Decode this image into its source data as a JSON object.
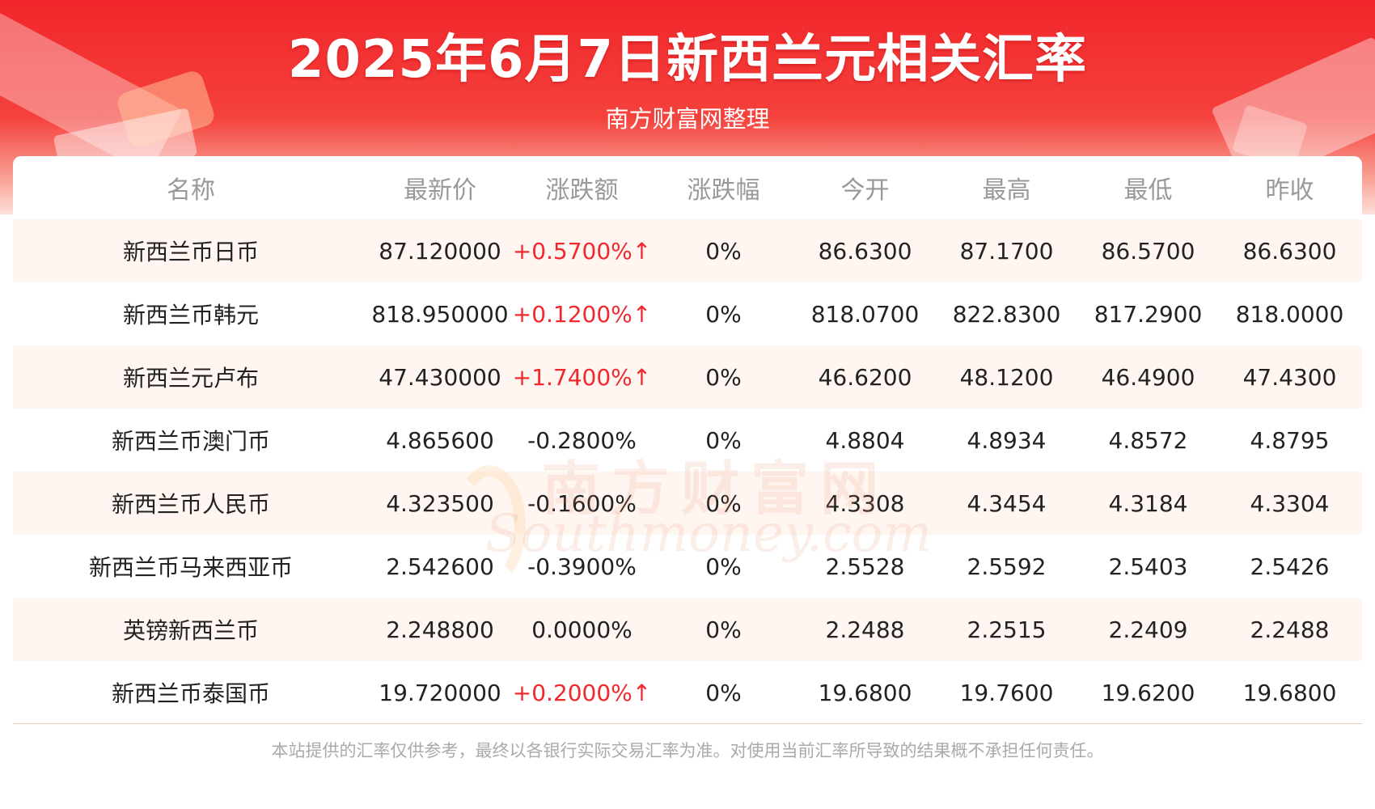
{
  "header": {
    "title": "2025年6月7日新西兰元相关汇率",
    "subtitle": "南方财富网整理"
  },
  "table": {
    "columns": [
      "名称",
      "最新价",
      "涨跌额",
      "涨跌幅",
      "今开",
      "最高",
      "最低",
      "昨收"
    ],
    "rows": [
      [
        "新西兰币日币",
        "87.120000",
        "+0.5700%↑",
        "0%",
        "86.6300",
        "87.1700",
        "86.5700",
        "86.6300"
      ],
      [
        "新西兰币韩元",
        "818.950000",
        "+0.1200%↑",
        "0%",
        "818.0700",
        "822.8300",
        "817.2900",
        "818.0000"
      ],
      [
        "新西兰元卢布",
        "47.430000",
        "+1.7400%↑",
        "0%",
        "46.6200",
        "48.1200",
        "46.4900",
        "47.4300"
      ],
      [
        "新西兰币澳门币",
        "4.865600",
        "-0.2800%",
        "0%",
        "4.8804",
        "4.8934",
        "4.8572",
        "4.8795"
      ],
      [
        "新西兰币人民币",
        "4.323500",
        "-0.1600%",
        "0%",
        "4.3308",
        "4.3454",
        "4.3184",
        "4.3304"
      ],
      [
        "新西兰币马来西亚币",
        "2.542600",
        "-0.3900%",
        "0%",
        "2.5528",
        "2.5592",
        "2.5403",
        "2.5426"
      ],
      [
        "英镑新西兰币",
        "2.248800",
        "0.0000%",
        "0%",
        "2.2488",
        "2.2515",
        "2.2409",
        "2.2488"
      ],
      [
        "新西兰币泰国币",
        "19.720000",
        "+0.2000%↑",
        "0%",
        "19.6800",
        "19.7600",
        "19.6200",
        "19.6800"
      ]
    ],
    "up_color": "#f0292f"
  },
  "watermark": {
    "cn": "南方财富网",
    "en": "Southmoney.com"
  },
  "disclaimer": "本站提供的汇率仅供参考，最终以各银行实际交易汇率为准。对使用当前汇率所导致的结果概不承担任何责任。"
}
